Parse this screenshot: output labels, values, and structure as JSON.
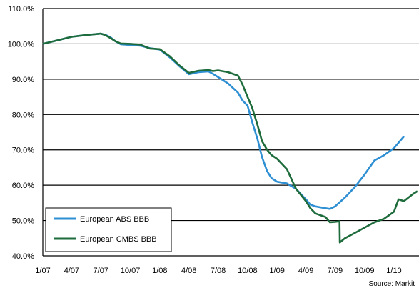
{
  "chart_data": {
    "type": "line",
    "title": "",
    "xlabel": "",
    "ylabel": "",
    "ylim": [
      40,
      110
    ],
    "yticks": [
      40,
      50,
      60,
      70,
      80,
      90,
      100,
      110
    ],
    "ytick_labels": [
      "40.0%",
      "50.0%",
      "60.0%",
      "70.0%",
      "80.0%",
      "90.0%",
      "100.0%",
      "110.0%"
    ],
    "xlim": [
      "2007-01",
      "2010-03"
    ],
    "xticks": [
      "2007-01",
      "2007-04",
      "2007-07",
      "2007-10",
      "2008-01",
      "2008-04",
      "2008-07",
      "2008-10",
      "2009-01",
      "2009-04",
      "2009-07",
      "2009-10",
      "2010-01"
    ],
    "xtick_labels": [
      "1/07",
      "4/07",
      "7/07",
      "10/07",
      "1/08",
      "4/08",
      "7/08",
      "10/08",
      "1/09",
      "4/09",
      "7/09",
      "10/09",
      "1/10"
    ],
    "grid": "horizontal",
    "legend_position": "bottom-left",
    "series": [
      {
        "name": "European ABS BBB",
        "color": "#2f8fd3",
        "points": [
          [
            "2007-01-01",
            100.0
          ],
          [
            "2007-02-15",
            101.0
          ],
          [
            "2007-04-01",
            102.0
          ],
          [
            "2007-05-15",
            102.5
          ],
          [
            "2007-07-01",
            102.9
          ],
          [
            "2007-07-15",
            102.6
          ],
          [
            "2007-08-01",
            101.8
          ],
          [
            "2007-08-15",
            100.8
          ],
          [
            "2007-09-01",
            99.9
          ],
          [
            "2007-10-01",
            99.7
          ],
          [
            "2007-11-01",
            99.5
          ],
          [
            "2007-12-01",
            98.8
          ],
          [
            "2008-01-01",
            98.4
          ],
          [
            "2008-02-01",
            96.2
          ],
          [
            "2008-03-01",
            93.8
          ],
          [
            "2008-04-01",
            91.4
          ],
          [
            "2008-05-01",
            92.0
          ],
          [
            "2008-06-01",
            92.2
          ],
          [
            "2008-06-15",
            91.5
          ],
          [
            "2008-07-01",
            90.6
          ],
          [
            "2008-08-01",
            88.8
          ],
          [
            "2008-09-01",
            86.2
          ],
          [
            "2008-09-15",
            84.0
          ],
          [
            "2008-10-01",
            82.5
          ],
          [
            "2008-10-15",
            78.0
          ],
          [
            "2008-11-01",
            73.0
          ],
          [
            "2008-11-15",
            68.0
          ],
          [
            "2008-12-01",
            64.0
          ],
          [
            "2008-12-15",
            62.0
          ],
          [
            "2009-01-01",
            61.0
          ],
          [
            "2009-02-01",
            60.5
          ],
          [
            "2009-03-01",
            59.0
          ],
          [
            "2009-04-01",
            56.0
          ],
          [
            "2009-04-15",
            54.5
          ],
          [
            "2009-05-01",
            54.0
          ],
          [
            "2009-06-01",
            53.5
          ],
          [
            "2009-06-15",
            53.3
          ],
          [
            "2009-07-01",
            54.0
          ],
          [
            "2009-08-01",
            56.5
          ],
          [
            "2009-09-01",
            59.5
          ],
          [
            "2009-10-01",
            63.0
          ],
          [
            "2009-11-01",
            67.0
          ],
          [
            "2009-12-01",
            68.5
          ],
          [
            "2010-01-01",
            70.5
          ],
          [
            "2010-01-15",
            72.0
          ],
          [
            "2010-02-01",
            73.8
          ]
        ]
      },
      {
        "name": "European CMBS BBB",
        "color": "#1e6b3c",
        "points": [
          [
            "2007-01-01",
            100.0
          ],
          [
            "2007-02-15",
            101.0
          ],
          [
            "2007-04-01",
            102.0
          ],
          [
            "2007-05-15",
            102.5
          ],
          [
            "2007-07-01",
            102.9
          ],
          [
            "2007-07-15",
            102.5
          ],
          [
            "2007-08-01",
            101.6
          ],
          [
            "2007-08-15",
            100.8
          ],
          [
            "2007-09-01",
            100.1
          ],
          [
            "2007-10-01",
            100.0
          ],
          [
            "2007-11-01",
            99.8
          ],
          [
            "2007-12-01",
            98.7
          ],
          [
            "2008-01-01",
            98.5
          ],
          [
            "2008-02-01",
            96.5
          ],
          [
            "2008-03-01",
            94.0
          ],
          [
            "2008-04-01",
            91.8
          ],
          [
            "2008-05-01",
            92.4
          ],
          [
            "2008-06-01",
            92.6
          ],
          [
            "2008-06-15",
            92.3
          ],
          [
            "2008-07-01",
            92.5
          ],
          [
            "2008-08-01",
            92.0
          ],
          [
            "2008-09-01",
            91.0
          ],
          [
            "2008-09-15",
            88.5
          ],
          [
            "2008-10-01",
            85.0
          ],
          [
            "2008-10-15",
            82.0
          ],
          [
            "2008-11-01",
            77.0
          ],
          [
            "2008-11-15",
            72.5
          ],
          [
            "2008-12-01",
            70.0
          ],
          [
            "2008-12-15",
            68.5
          ],
          [
            "2009-01-01",
            67.5
          ],
          [
            "2009-02-01",
            64.5
          ],
          [
            "2009-03-01",
            59.0
          ],
          [
            "2009-04-01",
            55.5
          ],
          [
            "2009-04-15",
            53.5
          ],
          [
            "2009-05-01",
            52.0
          ],
          [
            "2009-06-01",
            51.0
          ],
          [
            "2009-06-15",
            49.5
          ],
          [
            "2009-07-01",
            49.6
          ],
          [
            "2009-07-15",
            49.8
          ],
          [
            "2009-07-16",
            43.8
          ],
          [
            "2009-08-01",
            45.0
          ],
          [
            "2009-09-01",
            46.5
          ],
          [
            "2009-10-01",
            48.0
          ],
          [
            "2009-11-01",
            49.5
          ],
          [
            "2009-12-01",
            50.5
          ],
          [
            "2010-01-01",
            52.5
          ],
          [
            "2010-01-15",
            56.0
          ],
          [
            "2010-02-01",
            55.5
          ],
          [
            "2010-03-01",
            57.5
          ],
          [
            "2010-03-15",
            58.3
          ]
        ]
      }
    ]
  },
  "source": "Source: Markit"
}
